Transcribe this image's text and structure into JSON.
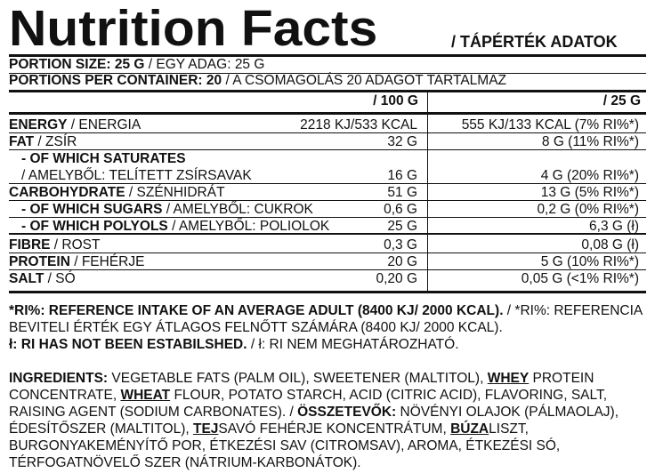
{
  "header": {
    "title": "Nutrition Facts",
    "subtitle": "/ TÁPÉRTÉK ADATOK"
  },
  "portion": {
    "size_label": "PORTION SIZE: 25 G",
    "size_hu": " / EGY ADAG: 25 G",
    "per_container_label": "PORTIONS PER CONTAINER: 20",
    "per_container_hu": " / A CSOMAGOLÁS 20 ADAGOT TARTALMAZ"
  },
  "columns": {
    "per100": "/ 100 G",
    "per25": "/ 25 G"
  },
  "rows": [
    {
      "label_en": "ENERGY",
      "label_hu": " / ENERGIA",
      "v100": "2218 KJ/533 KCAL",
      "v25": "555 KJ/133 KCAL (7% RI%*)"
    },
    {
      "label_en": "FAT",
      "label_hu": " / ZSÍR",
      "v100": "32 G",
      "v25": "8 G (11% RI%*)"
    },
    {
      "label_en": "- OF WHICH SATURATES",
      "label_hu": "",
      "v100": "",
      "v25": ""
    },
    {
      "label_en": "",
      "label_hu": "/ AMELYBŐL: TELÍTETT ZSÍRSAVAK",
      "v100": "16 G",
      "v25": "4 G (20% RI%*)"
    },
    {
      "label_en": "CARBOHYDRATE",
      "label_hu": " / SZÉNHIDRÁT",
      "v100": "51 G",
      "v25": "13 G (5% RI%*)"
    },
    {
      "label_en": "- OF WHICH SUGARS",
      "label_hu": " / AMELYBŐL: CUKROK",
      "v100": "0,6 G",
      "v25": "0,2 G (0% RI%*)"
    },
    {
      "label_en": "- OF WHICH POLYOLS",
      "label_hu": " / AMELYBŐL: POLIOLOK",
      "v100": "25 G",
      "v25": "6,3 G (ł)"
    },
    {
      "label_en": "FIBRE",
      "label_hu": " / ROST",
      "v100": "0,3 G",
      "v25": "0,08 G (ł)"
    },
    {
      "label_en": "PROTEIN",
      "label_hu": " / FEHÉRJE",
      "v100": "20 G",
      "v25": "5 G (10% RI%*)"
    },
    {
      "label_en": "SALT",
      "label_hu": " / SÓ",
      "v100": "0,20 G",
      "v25": "0,05 G (<1% RI%*)"
    }
  ],
  "notes": {
    "ri_en": "*RI%: REFERENCE INTAKE OF AN AVERAGE ADULT (8400 KJ/ 2000 KCAL).",
    "ri_hu": " / *RI%: REFERENCIA BEVITELI ÉRTÉK EGY ÁTLAGOS FELNŐTT SZÁMÁRA (8400 KJ/ 2000 KCAL).",
    "ns_en": "ł: RI HAS NOT BEEN ESTABILSHED.",
    "ns_hu": " / ł: RI NEM MEGHATÁROZHATÓ."
  },
  "ingredients": {
    "label_en": "INGREDIENTS:",
    "t1": " VEGETABLE FATS (PALM OIL), SWEETENER (MALTITOL), ",
    "a1": "WHEY",
    "t2": " PROTEIN CONCENTRATE, ",
    "a2": "WHEAT",
    "t3": " FLOUR, POTATO STARCH, ACID (CITRIC ACID), FLAVORING, SALT, RAISING AGENT (SODIUM CARBONATES). / ",
    "label_hu": "ÖSSZETEVŐK:",
    "t4": " NÖVÉNYI OLAJOK (PÁLMAOLAJ), ÉDESÍTŐSZER (MALTITOL), ",
    "a3": "TEJ",
    "t5": "SAVÓ FEHÉRJE KONCENTRÁTUM, ",
    "a4": "BÚZA",
    "t6": "LISZT, BURGONYAKEMÉNYÍTŐ POR, ÉTKEZÉSI SAV (CITROMSAV), AROMA, ÉTKEZÉSI SÓ, TÉRFOGATNÖVELŐ SZER (NÁTRIUM-KARBONÁTOK)."
  }
}
